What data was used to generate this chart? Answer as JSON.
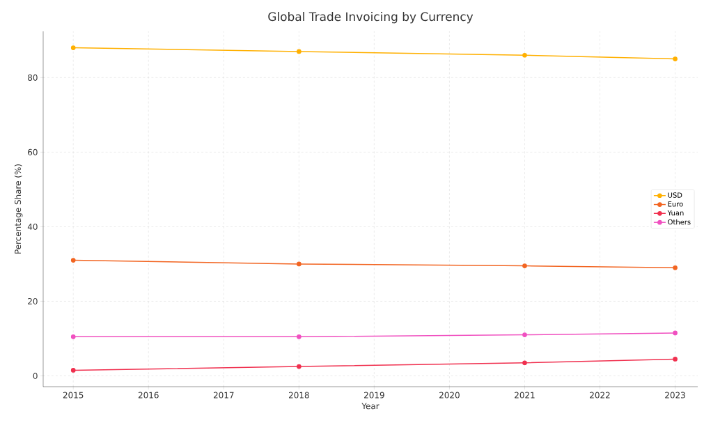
{
  "chart_data": {
    "type": "line",
    "title": "Global Trade Invoicing by Currency",
    "xlabel": "Year",
    "ylabel": "Percentage Share (%)",
    "x": [
      2015,
      2018,
      2021,
      2023
    ],
    "series": [
      {
        "name": "USD",
        "color": "#ffb000",
        "values": [
          88,
          87,
          86,
          85
        ]
      },
      {
        "name": "Euro",
        "color": "#f26522",
        "values": [
          31,
          30,
          29.5,
          29
        ]
      },
      {
        "name": "Yuan",
        "color": "#f0304f",
        "values": [
          1.5,
          2.5,
          3.5,
          4.5
        ]
      },
      {
        "name": "Others",
        "color": "#f050c0",
        "values": [
          10.5,
          10.5,
          11,
          11.5
        ]
      }
    ],
    "xlim": [
      2014.6,
      2023.3
    ],
    "ylim": [
      -2.9,
      92.4
    ],
    "xticks": [
      2015,
      2016,
      2017,
      2018,
      2019,
      2020,
      2021,
      2022,
      2023
    ],
    "yticks": [
      0,
      20,
      40,
      60,
      80
    ],
    "grid": true,
    "legend": "right",
    "marker": "circle",
    "line_style": "solid"
  }
}
